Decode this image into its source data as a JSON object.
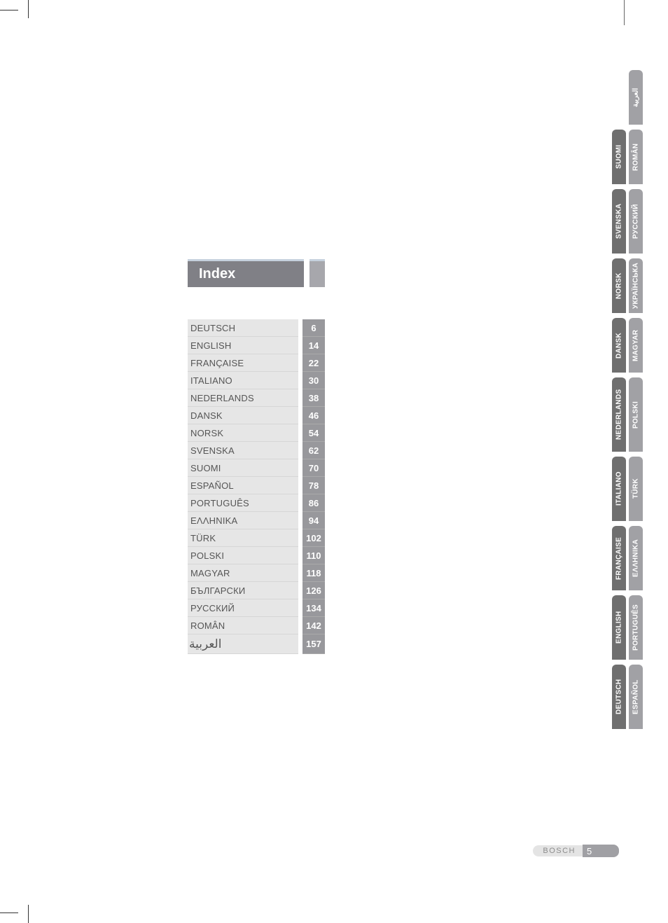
{
  "title": "Index",
  "footer": {
    "brand": "BOSCH",
    "page_number": "5"
  },
  "colors": {
    "index_bar_bg": "#808086",
    "index_bar_mini_bg": "#a7a7ac",
    "index_bar_top_border": "#c6d1de",
    "row_lang_bg": "#e6e6e6",
    "row_lang_text": "#555555",
    "row_page_bg": "#98989c",
    "row_page_text": "#ffffff",
    "tab_dark_bg": "#6f6f6f",
    "tab_light_bg": "#a1a1a5",
    "tab_text": "#ffffff",
    "footer_brand_bg": "#e4e4e4",
    "footer_brand_text": "#8c8c8c",
    "footer_page_bg": "#a0a0a4"
  },
  "typography": {
    "title_fontsize": 20,
    "row_fontsize": 13,
    "tab_fontsize": 10,
    "footer_brand_fontsize": 11,
    "footer_page_fontsize": 13
  },
  "index": {
    "rows": [
      {
        "lang": "DEUTSCH",
        "page": "6"
      },
      {
        "lang": "ENGLISH",
        "page": "14"
      },
      {
        "lang": "FRANÇAISE",
        "page": "22"
      },
      {
        "lang": "ITALIANO",
        "page": "30"
      },
      {
        "lang": "NEDERLANDS",
        "page": "38"
      },
      {
        "lang": "DANSK",
        "page": "46"
      },
      {
        "lang": "NORSK",
        "page": "54"
      },
      {
        "lang": "SVENSKA",
        "page": "62"
      },
      {
        "lang": "SUOMI",
        "page": "70"
      },
      {
        "lang": "ESPAÑOL",
        "page": "78"
      },
      {
        "lang": "PORTUGUÊS",
        "page": "86"
      },
      {
        "lang": "ΕΛΛΗΝΙΚΑ",
        "page": "94"
      },
      {
        "lang": "TÜRK",
        "page": "102"
      },
      {
        "lang": "POLSKI",
        "page": "110"
      },
      {
        "lang": "MAGYAR",
        "page": "118"
      },
      {
        "lang": "БЪЛГАРСКИ",
        "page": "126"
      },
      {
        "lang": "РУССКИЙ",
        "page": "134"
      },
      {
        "lang": "ROMÂN",
        "page": "142"
      },
      {
        "lang": "العربية",
        "page": "157",
        "rtl": true
      }
    ]
  },
  "tabs": {
    "col1": [
      {
        "label": "DEUTSCH",
        "size": "med"
      },
      {
        "label": "ENGLISH",
        "size": "med"
      },
      {
        "label": "FRANÇAISE",
        "size": "med"
      },
      {
        "label": "ITALIANO",
        "size": "med"
      },
      {
        "label": "NEDERLANDS",
        "size": "long"
      },
      {
        "label": "DANSK",
        "size": "short"
      },
      {
        "label": "NORSK",
        "size": "short"
      },
      {
        "label": "SVENSKA",
        "size": "med"
      },
      {
        "label": "SUOMI",
        "size": "short"
      }
    ],
    "col2": [
      {
        "label": "ESPAÑOL",
        "size": "med"
      },
      {
        "label": "PORTUGUÊS",
        "size": "med"
      },
      {
        "label": "ΕΛΛΗΝΙΚΑ",
        "size": "med"
      },
      {
        "label": "TÜRK",
        "size": "med"
      },
      {
        "label": "POLSKI",
        "size": "long"
      },
      {
        "label": "MAGYAR",
        "size": "short"
      },
      {
        "label": "УКРАЇНСЬКА",
        "size": "short"
      },
      {
        "label": "РУССКИЙ",
        "size": "med"
      },
      {
        "label": "ROMÂN",
        "size": "short"
      },
      {
        "label": "العربية",
        "size": "short"
      }
    ]
  }
}
